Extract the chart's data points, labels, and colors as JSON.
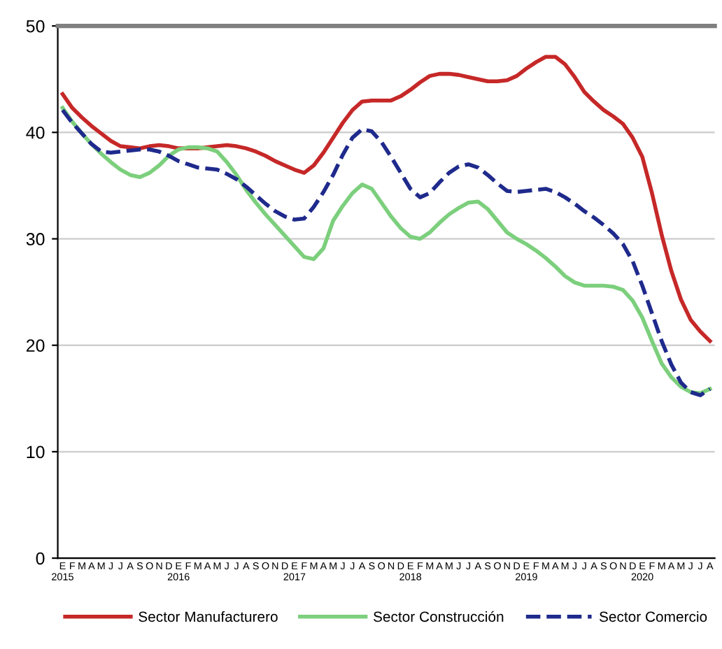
{
  "chart_data": {
    "type": "line",
    "categories": [
      "E\n2015",
      "F",
      "M",
      "A",
      "M",
      "J",
      "J",
      "A",
      "S",
      "O",
      "N",
      "D",
      "E\n2016",
      "F",
      "M",
      "A",
      "M",
      "J",
      "J",
      "A",
      "S",
      "O",
      "N",
      "D",
      "E\n2017",
      "F",
      "M",
      "A",
      "M",
      "J",
      "J",
      "A",
      "S",
      "O",
      "N",
      "D",
      "E\n2018",
      "F",
      "M",
      "A",
      "M",
      "J",
      "J",
      "A",
      "S",
      "O",
      "N",
      "D",
      "E\n2019",
      "F",
      "M",
      "A",
      "M",
      "J",
      "J",
      "A",
      "S",
      "O",
      "N",
      "D",
      "E\n2020",
      "F",
      "M",
      "A",
      "M",
      "J",
      "J",
      "A"
    ],
    "series": [
      {
        "name": "Sector Manufacturero",
        "color": "#c62828",
        "line_style": "solid",
        "values": [
          43.6,
          42.3,
          41.4,
          40.6,
          39.9,
          39.2,
          38.7,
          38.6,
          38.5,
          38.7,
          38.8,
          38.7,
          38.5,
          38.5,
          38.5,
          38.6,
          38.7,
          38.8,
          38.7,
          38.5,
          38.2,
          37.8,
          37.3,
          36.9,
          36.5,
          36.2,
          36.9,
          38.1,
          39.5,
          40.9,
          42.1,
          42.9,
          43.0,
          43.0,
          43.0,
          43.4,
          44.0,
          44.7,
          45.3,
          45.5,
          45.5,
          45.4,
          45.2,
          45.0,
          44.8,
          44.8,
          44.9,
          45.3,
          46.0,
          46.6,
          47.1,
          47.1,
          46.4,
          45.2,
          43.8,
          42.9,
          42.1,
          41.5,
          40.8,
          39.5,
          37.7,
          34.3,
          30.4,
          27.0,
          24.3,
          22.4,
          21.3,
          20.4
        ]
      },
      {
        "name": "Sector Construcción",
        "color": "#7ccf7c",
        "line_style": "solid",
        "values": [
          42.3,
          41.0,
          39.9,
          38.9,
          38.0,
          37.2,
          36.5,
          36.0,
          35.8,
          36.2,
          36.9,
          37.8,
          38.4,
          38.6,
          38.6,
          38.5,
          38.2,
          37.2,
          36.0,
          34.6,
          33.4,
          32.3,
          31.3,
          30.3,
          29.3,
          28.3,
          28.1,
          29.1,
          31.7,
          33.1,
          34.3,
          35.1,
          34.7,
          33.4,
          32.1,
          31.0,
          30.2,
          30.0,
          30.6,
          31.5,
          32.3,
          32.9,
          33.4,
          33.5,
          32.8,
          31.7,
          30.6,
          30.0,
          29.5,
          28.9,
          28.2,
          27.4,
          26.5,
          25.9,
          25.6,
          25.6,
          25.6,
          25.5,
          25.2,
          24.2,
          22.6,
          20.4,
          18.3,
          17.0,
          16.1,
          15.6,
          15.5,
          15.9
        ]
      },
      {
        "name": "Sector Comercio",
        "color": "#1f2a8c",
        "line_style": "dashed",
        "values": [
          42.1,
          40.9,
          39.9,
          38.9,
          38.2,
          38.1,
          38.2,
          38.3,
          38.4,
          38.4,
          38.2,
          37.8,
          37.3,
          37.0,
          36.7,
          36.6,
          36.5,
          36.1,
          35.6,
          34.9,
          34.1,
          33.3,
          32.6,
          32.1,
          31.8,
          31.9,
          33.0,
          34.4,
          36.0,
          37.9,
          39.5,
          40.3,
          40.1,
          39.1,
          37.7,
          36.2,
          34.7,
          33.9,
          34.3,
          35.3,
          36.2,
          36.8,
          37.0,
          36.7,
          36.0,
          35.2,
          34.5,
          34.4,
          34.5,
          34.6,
          34.7,
          34.4,
          33.9,
          33.3,
          32.6,
          32.0,
          31.3,
          30.5,
          29.5,
          27.9,
          25.6,
          23.0,
          20.4,
          18.2,
          16.5,
          15.6,
          15.3,
          15.9
        ]
      }
    ],
    "ylim": [
      0,
      50
    ],
    "yticks": [
      0,
      10,
      20,
      30,
      40,
      50
    ],
    "grid": "y",
    "legend": "bottom",
    "marker": "none"
  }
}
